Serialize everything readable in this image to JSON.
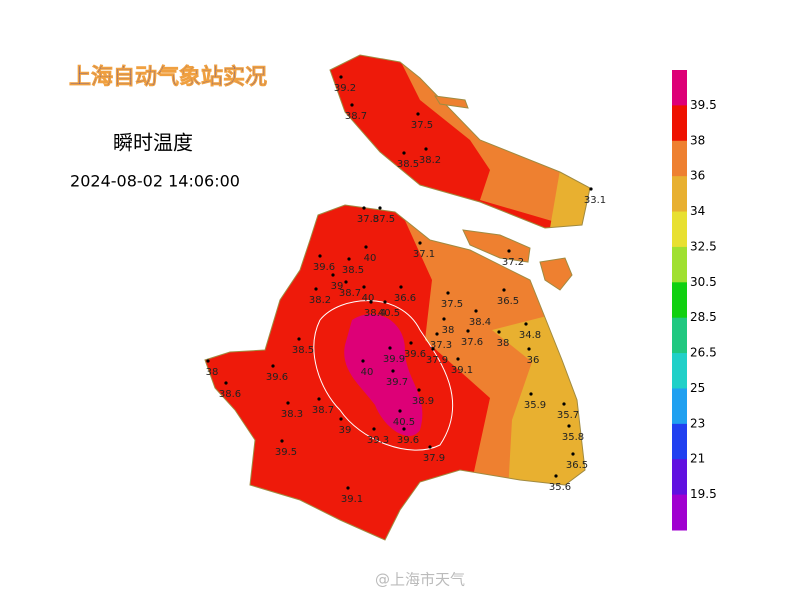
{
  "header": {
    "title": "上海自动气象站实况",
    "subtitle": "瞬时温度",
    "timestamp": "2024-08-02 14:06:00"
  },
  "legend": {
    "labels": [
      39.5,
      38,
      36,
      34,
      32.5,
      30.5,
      28.5,
      26.5,
      25,
      23,
      21,
      19.5
    ],
    "colors": [
      "#dd0077",
      "#ee1100",
      "#ee8030",
      "#e8b030",
      "#e8e030",
      "#a0e030",
      "#10d010",
      "#20c880",
      "#20d0c8",
      "#20a0f0",
      "#2040f0",
      "#6010e0",
      "#a000d0"
    ]
  },
  "stations": [
    39.2,
    38.7,
    37.5,
    38.5,
    38.2,
    33.1,
    37.8,
    37.5,
    40,
    37.1,
    37.2,
    39.6,
    38.5,
    39,
    38.7,
    38.2,
    40,
    38.4,
    40.5,
    36.6,
    37.5,
    36.5,
    38,
    38.4,
    34.8,
    37.3,
    37.6,
    38,
    36,
    38.5,
    39.9,
    39.6,
    37.9,
    39.1,
    40,
    39.7,
    38,
    38.6,
    39.6,
    38.9,
    38.7,
    38.3,
    35.9,
    35.7,
    40.5,
    39,
    39.3,
    39.6,
    35.8,
    39.5,
    37.9,
    36.5,
    35.6,
    39.1
  ],
  "watermark": "@上海市天气"
}
